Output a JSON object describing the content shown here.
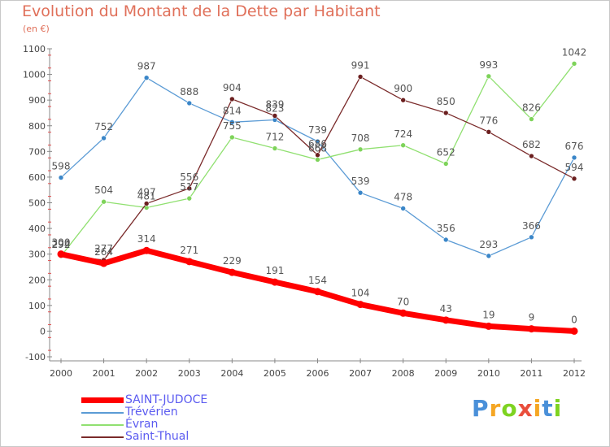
{
  "title": "Evolution du Montant de la Dette par Habitant",
  "subtitle": "(en €)",
  "logo": {
    "letters": [
      "P",
      "r",
      "o",
      "x",
      "i",
      "t",
      "i"
    ],
    "colors": [
      "#4a90d9",
      "#f5a623",
      "#7ed321",
      "#e94e3c",
      "#f5a623",
      "#4a90d9",
      "#7ed321"
    ]
  },
  "chart_data": {
    "type": "line",
    "title": "Evolution du Montant de la Dette par Habitant",
    "subtitle": "(en €)",
    "x": [
      "2000",
      "2001",
      "2002",
      "2003",
      "2004",
      "2005",
      "2006",
      "2007",
      "2008",
      "2009",
      "2010",
      "2011",
      "2012"
    ],
    "ylim": [
      -100,
      1100
    ],
    "yticks": [
      "-100",
      "0",
      "100",
      "200",
      "300",
      "400",
      "500",
      "600",
      "700",
      "800",
      "900",
      "1000",
      "1100"
    ],
    "grid": false,
    "legend_position": "bottom-left",
    "series": [
      {
        "name": "SAINT-JUDOCE",
        "color": "#ff0000",
        "width": 7,
        "values": [
          300,
          264,
          314,
          271,
          229,
          191,
          154,
          104,
          70,
          43,
          19,
          9,
          0
        ],
        "labels": [
          "300",
          "264",
          "314",
          "271",
          "229",
          "191",
          "154",
          "104",
          "70",
          "43",
          "19",
          "9",
          "0"
        ]
      },
      {
        "name": "Trévérien",
        "color": "#5b9bd5",
        "point": "#3a86c8",
        "width": 1.3,
        "values": [
          598,
          752,
          987,
          888,
          814,
          823,
          739,
          539,
          478,
          356,
          293,
          366,
          676
        ],
        "labels": [
          "598",
          "752",
          "987",
          "888",
          "814",
          "823",
          "739",
          "539",
          "478",
          "356",
          "293",
          "366",
          "676"
        ]
      },
      {
        "name": "Évran",
        "color": "#90e070",
        "point": "#7ed35a",
        "width": 1.3,
        "values": [
          292,
          504,
          481,
          517,
          755,
          712,
          668,
          708,
          724,
          652,
          993,
          826,
          1042
        ],
        "labels": [
          "292",
          "504",
          "481",
          "517",
          "755",
          "712",
          "668",
          "708",
          "724",
          "652",
          "993",
          "826",
          "1042"
        ]
      },
      {
        "name": "Saint-Thual",
        "color": "#7a2a2a",
        "point": "#6b1f1f",
        "width": 1.3,
        "values": [
          294,
          277,
          497,
          556,
          904,
          839,
          686,
          991,
          900,
          850,
          776,
          682,
          594
        ],
        "labels": [
          "294",
          "277",
          "497",
          "556",
          "904",
          "839",
          "686",
          "991",
          "900",
          "850",
          "776",
          "682",
          "594"
        ]
      }
    ]
  },
  "legend": [
    {
      "label": "SAINT-JUDOCE",
      "color": "#ff0000"
    },
    {
      "label": "Trévérien",
      "color": "#5b9bd5"
    },
    {
      "label": "Évran",
      "color": "#90e070"
    },
    {
      "label": "Saint-Thual",
      "color": "#7a2a2a"
    }
  ]
}
